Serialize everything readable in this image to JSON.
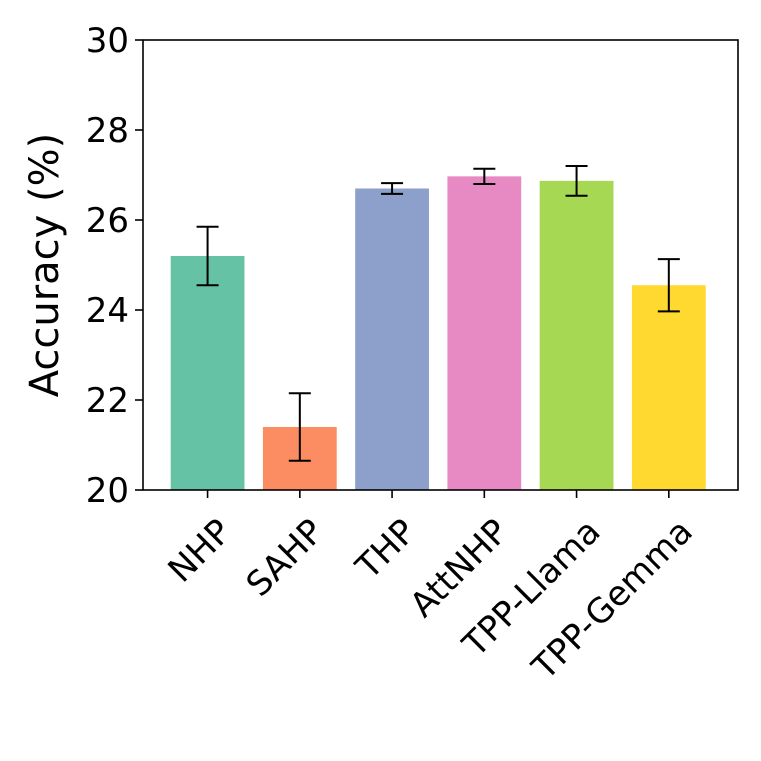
{
  "chart_data": {
    "type": "bar",
    "title": "",
    "xlabel": "",
    "ylabel": "Accuracy (%)",
    "categories": [
      "NHP",
      "SAHP",
      "THP",
      "AttNHP",
      "TPP-Llama",
      "TPP-Gemma"
    ],
    "values": [
      25.2,
      21.4,
      26.7,
      26.97,
      26.87,
      24.55
    ],
    "errors": [
      0.65,
      0.75,
      0.12,
      0.17,
      0.33,
      0.58
    ],
    "colors": [
      "#66c2a5",
      "#fc8d62",
      "#8da0cb",
      "#e78ac3",
      "#a6d854",
      "#ffd92f"
    ],
    "ylim": [
      20,
      30
    ],
    "yticks": [
      20,
      22,
      24,
      26,
      28,
      30
    ],
    "grid": false,
    "legend": "none"
  }
}
